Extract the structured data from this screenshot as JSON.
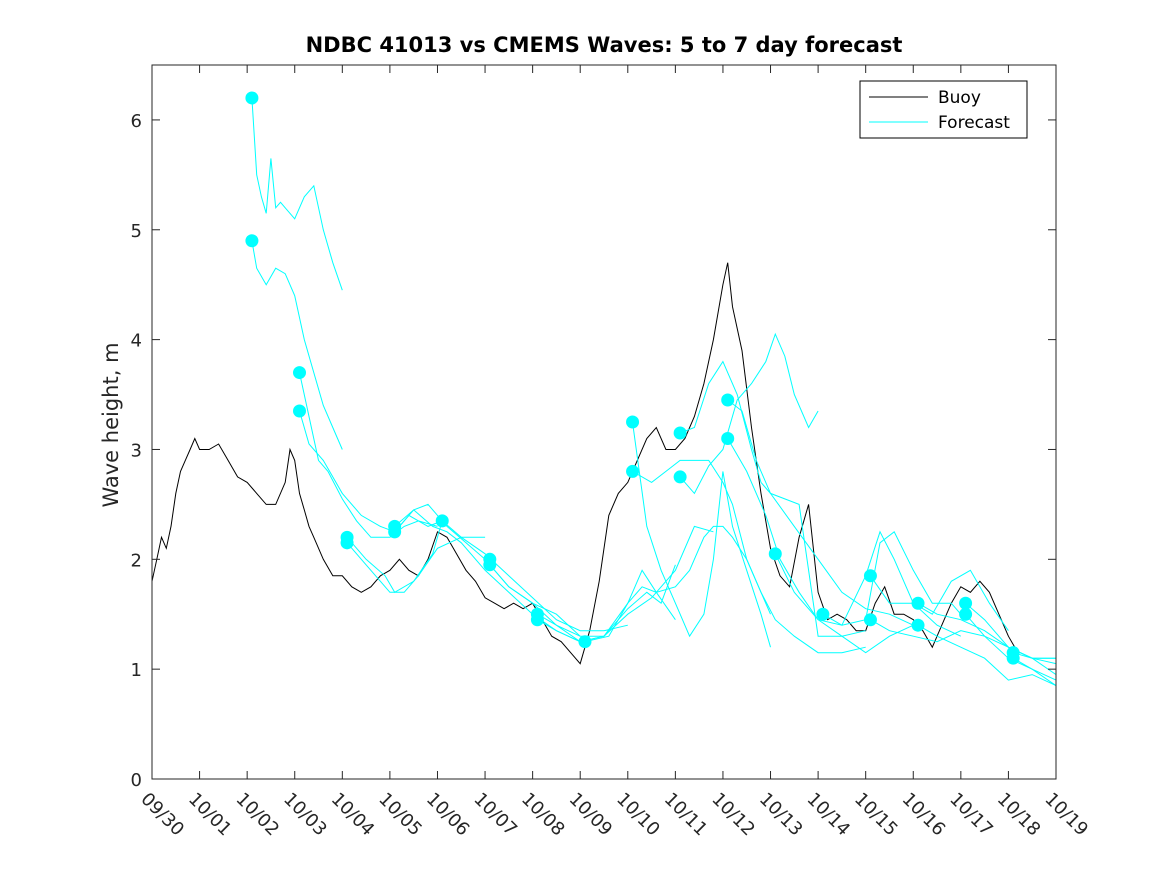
{
  "chart_data": {
    "type": "line",
    "title": "NDBC 41013 vs CMEMS Waves: 5 to 7 day forecast",
    "xlabel": "",
    "ylabel": "Wave height, m",
    "xlim": [
      0,
      19
    ],
    "ylim": [
      0,
      6.5
    ],
    "x_ticks": [
      0,
      1,
      2,
      3,
      4,
      5,
      6,
      7,
      8,
      9,
      10,
      11,
      12,
      13,
      14,
      15,
      16,
      17,
      18,
      19
    ],
    "x_tick_labels": [
      "09/30",
      "10/01",
      "10/02",
      "10/03",
      "10/04",
      "10/05",
      "10/06",
      "10/07",
      "10/08",
      "10/09",
      "10/10",
      "10/11",
      "10/12",
      "10/13",
      "10/14",
      "10/15",
      "10/16",
      "10/17",
      "10/18",
      "10/19"
    ],
    "y_ticks": [
      0,
      1,
      2,
      3,
      4,
      5,
      6
    ],
    "y_tick_labels": [
      "0",
      "1",
      "2",
      "3",
      "4",
      "5",
      "6"
    ],
    "legend": {
      "position": "top-right",
      "entries": [
        {
          "label": "Buoy",
          "color": "#000000"
        },
        {
          "label": "Forecast",
          "color": "#00FFFF"
        }
      ]
    },
    "buoy_color": "#000000",
    "forecast_color": "#00FFFF",
    "buoy": {
      "name": "Buoy",
      "x": [
        0,
        0.1,
        0.2,
        0.3,
        0.4,
        0.5,
        0.6,
        0.7,
        0.8,
        0.9,
        1.0,
        1.2,
        1.4,
        1.6,
        1.8,
        2.0,
        2.2,
        2.4,
        2.6,
        2.8,
        2.9,
        3.0,
        3.1,
        3.2,
        3.3,
        3.4,
        3.6,
        3.8,
        4.0,
        4.2,
        4.4,
        4.6,
        4.8,
        5.0,
        5.2,
        5.4,
        5.6,
        5.8,
        6.0,
        6.2,
        6.4,
        6.6,
        6.8,
        7.0,
        7.2,
        7.4,
        7.6,
        7.8,
        8.0,
        8.2,
        8.4,
        8.6,
        8.8,
        9.0,
        9.2,
        9.4,
        9.6,
        9.8,
        10.0,
        10.2,
        10.4,
        10.6,
        10.8,
        11.0,
        11.2,
        11.4,
        11.6,
        11.8,
        12.0,
        12.1,
        12.2,
        12.4,
        12.6,
        12.8,
        13.0,
        13.2,
        13.4,
        13.6,
        13.8,
        14.0,
        14.2,
        14.4,
        14.6,
        14.8,
        15.0,
        15.2,
        15.4,
        15.6,
        15.8,
        16.0,
        16.2,
        16.4,
        16.6,
        16.8,
        17.0,
        17.2,
        17.4,
        17.6,
        17.8,
        18.0,
        18.2
      ],
      "values": [
        1.8,
        2.0,
        2.2,
        2.1,
        2.3,
        2.6,
        2.8,
        2.9,
        3.0,
        3.1,
        3.0,
        3.0,
        3.05,
        2.9,
        2.75,
        2.7,
        2.6,
        2.5,
        2.5,
        2.7,
        3.0,
        2.9,
        2.6,
        2.45,
        2.3,
        2.2,
        2.0,
        1.85,
        1.85,
        1.75,
        1.7,
        1.75,
        1.85,
        1.9,
        2.0,
        1.9,
        1.85,
        2.0,
        2.25,
        2.2,
        2.05,
        1.9,
        1.8,
        1.65,
        1.6,
        1.55,
        1.6,
        1.55,
        1.6,
        1.45,
        1.3,
        1.25,
        1.15,
        1.05,
        1.35,
        1.8,
        2.4,
        2.6,
        2.7,
        2.9,
        3.1,
        3.2,
        3.0,
        3.0,
        3.1,
        3.3,
        3.6,
        4.0,
        4.5,
        4.7,
        4.3,
        3.9,
        3.2,
        2.6,
        2.1,
        1.85,
        1.75,
        2.2,
        2.5,
        1.7,
        1.45,
        1.5,
        1.45,
        1.35,
        1.35,
        1.6,
        1.75,
        1.5,
        1.5,
        1.45,
        1.35,
        1.2,
        1.4,
        1.6,
        1.75,
        1.7,
        1.8,
        1.7,
        1.5,
        1.3,
        1.15
      ]
    },
    "series": [
      {
        "name": "Forecast",
        "x": [
          2.1,
          2.2,
          2.3,
          2.4,
          2.5,
          2.6,
          2.7,
          2.8,
          3.0,
          3.2,
          3.4,
          3.6,
          3.8,
          4.0
        ],
        "values": [
          6.2,
          5.5,
          5.3,
          5.15,
          5.65,
          5.2,
          5.25,
          5.2,
          5.1,
          5.3,
          5.4,
          5.0,
          4.7,
          4.45
        ]
      },
      {
        "name": "Forecast",
        "x": [
          2.1,
          2.2,
          2.4,
          2.6,
          2.8,
          3.0,
          3.2,
          3.4,
          3.6,
          3.8,
          4.0
        ],
        "values": [
          4.9,
          4.65,
          4.5,
          4.65,
          4.6,
          4.4,
          4.0,
          3.7,
          3.4,
          3.2,
          3.0
        ]
      },
      {
        "name": "Forecast",
        "x": [
          3.1,
          3.3,
          3.5,
          3.7,
          4.0,
          4.3,
          4.6,
          5.0,
          5.3,
          5.6,
          6.0
        ],
        "values": [
          3.7,
          3.3,
          2.9,
          2.8,
          2.55,
          2.35,
          2.2,
          2.2,
          2.3,
          2.35,
          2.3
        ]
      },
      {
        "name": "Forecast",
        "x": [
          3.1,
          3.3,
          3.6,
          4.0,
          4.4,
          4.8,
          5.1,
          5.4,
          5.8,
          6.1
        ],
        "values": [
          3.35,
          3.05,
          2.9,
          2.6,
          2.4,
          2.3,
          2.25,
          2.4,
          2.3,
          2.35
        ]
      },
      {
        "name": "Forecast",
        "x": [
          4.1,
          4.4,
          4.8,
          5.0,
          5.3,
          5.6,
          6.0,
          6.5,
          7.0
        ],
        "values": [
          2.15,
          2.0,
          1.8,
          1.7,
          1.7,
          1.85,
          2.1,
          2.2,
          2.2
        ]
      },
      {
        "name": "Forecast",
        "x": [
          4.1,
          4.5,
          4.9,
          5.1,
          5.5,
          5.9,
          6.1
        ],
        "values": [
          2.2,
          2.0,
          1.85,
          1.7,
          1.8,
          2.05,
          2.35
        ]
      },
      {
        "name": "Forecast",
        "x": [
          5.1,
          5.5,
          5.9,
          6.2,
          6.5,
          7.0,
          7.5,
          8.0,
          8.5,
          9.0
        ],
        "values": [
          2.3,
          2.45,
          2.3,
          2.25,
          2.15,
          1.9,
          1.7,
          1.5,
          1.35,
          1.25
        ]
      },
      {
        "name": "Forecast",
        "x": [
          5.1,
          5.5,
          5.8,
          6.2,
          6.6,
          7.0,
          7.5,
          8.0,
          8.5,
          9.0
        ],
        "values": [
          2.25,
          2.45,
          2.5,
          2.3,
          2.15,
          2.0,
          1.75,
          1.6,
          1.5,
          1.3
        ]
      },
      {
        "name": "Forecast",
        "x": [
          6.1,
          6.5,
          7.0,
          7.5,
          8.0,
          8.5,
          9.0,
          9.5,
          10.0
        ],
        "values": [
          2.35,
          2.2,
          2.05,
          1.85,
          1.65,
          1.45,
          1.35,
          1.35,
          1.4
        ]
      },
      {
        "name": "Forecast",
        "x": [
          7.1,
          7.5,
          8.0,
          8.5,
          9.0,
          9.5,
          10.0,
          10.3,
          10.6,
          11.0
        ],
        "values": [
          1.95,
          1.75,
          1.6,
          1.4,
          1.3,
          1.3,
          1.6,
          1.9,
          1.7,
          1.45
        ]
      },
      {
        "name": "Forecast",
        "x": [
          8.1,
          8.5,
          9.0,
          9.5,
          10.0,
          10.4,
          10.7,
          11.0
        ],
        "values": [
          1.45,
          1.35,
          1.25,
          1.3,
          1.55,
          1.7,
          1.6,
          1.95
        ]
      },
      {
        "name": "Forecast",
        "x": [
          8.1,
          8.5,
          9.0,
          9.5,
          10.0,
          10.5,
          11.0,
          11.4,
          11.8
        ],
        "values": [
          1.5,
          1.4,
          1.25,
          1.3,
          1.5,
          1.65,
          1.9,
          2.3,
          2.25
        ]
      },
      {
        "name": "Forecast",
        "x": [
          9.1,
          9.6,
          10.0,
          10.3,
          10.6,
          11.0,
          11.3,
          11.6,
          11.8,
          12.0,
          12.2,
          12.5,
          12.8,
          13.0
        ],
        "values": [
          1.25,
          1.3,
          1.6,
          1.75,
          1.7,
          1.75,
          1.9,
          2.2,
          2.3,
          2.3,
          2.2,
          2.0,
          1.7,
          1.5
        ]
      },
      {
        "name": "Forecast",
        "x": [
          10.1,
          10.4,
          10.7,
          11.0,
          11.3,
          11.6,
          11.8,
          12.0,
          12.2,
          12.5,
          12.8,
          13.0
        ],
        "values": [
          3.25,
          2.3,
          1.9,
          1.6,
          1.3,
          1.5,
          2.0,
          2.8,
          2.3,
          1.9,
          1.5,
          1.2
        ]
      },
      {
        "name": "Forecast",
        "x": [
          10.1,
          10.5,
          10.8,
          11.1,
          11.4,
          11.7,
          12.0,
          12.2,
          12.5,
          12.8,
          13.1,
          13.5,
          14.0,
          14.5,
          15.0
        ],
        "values": [
          2.8,
          2.7,
          2.8,
          2.9,
          2.9,
          2.9,
          2.7,
          2.5,
          2.0,
          1.7,
          1.45,
          1.3,
          1.15,
          1.15,
          1.2
        ]
      },
      {
        "name": "Forecast",
        "x": [
          11.1,
          11.4,
          11.7,
          12.0,
          12.3,
          12.6,
          12.8,
          13.0,
          13.3,
          13.6,
          14.0,
          14.5,
          15.0
        ],
        "values": [
          3.15,
          3.2,
          3.6,
          3.8,
          3.5,
          3.0,
          2.7,
          2.6,
          2.55,
          2.5,
          1.3,
          1.3,
          1.35
        ]
      },
      {
        "name": "Forecast",
        "x": [
          11.1,
          11.4,
          11.7,
          12.0,
          12.3,
          12.6,
          12.9,
          13.1,
          13.3,
          13.5,
          13.8,
          14.0
        ],
        "values": [
          2.75,
          2.6,
          2.85,
          3.0,
          3.45,
          3.6,
          3.8,
          4.05,
          3.85,
          3.5,
          3.2,
          3.35
        ]
      },
      {
        "name": "Forecast",
        "x": [
          12.1,
          12.4,
          12.7,
          13.0,
          13.5,
          14.0,
          14.5,
          15.0,
          15.5,
          16.0
        ],
        "values": [
          3.45,
          3.35,
          2.9,
          2.6,
          2.3,
          2.0,
          1.7,
          1.55,
          1.5,
          1.4
        ]
      },
      {
        "name": "Forecast",
        "x": [
          12.1,
          12.5,
          12.9,
          13.2,
          13.6,
          14.0,
          14.5,
          15.0,
          15.5,
          16.0
        ],
        "values": [
          3.1,
          2.8,
          2.4,
          2.0,
          1.7,
          1.45,
          1.3,
          1.15,
          1.3,
          1.4
        ]
      },
      {
        "name": "Forecast",
        "x": [
          13.1,
          13.5,
          14.0,
          14.5,
          15.0,
          15.3,
          15.6,
          16.0,
          16.5,
          17.0
        ],
        "values": [
          2.05,
          1.7,
          1.45,
          1.4,
          1.85,
          2.25,
          2.0,
          1.6,
          1.4,
          1.3
        ]
      },
      {
        "name": "Forecast",
        "x": [
          14.1,
          14.5,
          15.0,
          15.3,
          15.6,
          16.0,
          16.4,
          16.8,
          17.0
        ],
        "values": [
          1.5,
          1.4,
          1.45,
          2.15,
          2.25,
          1.9,
          1.6,
          1.6,
          1.5
        ]
      },
      {
        "name": "Forecast",
        "x": [
          15.1,
          15.5,
          16.0,
          16.4,
          16.8,
          17.2,
          17.6,
          18.0
        ],
        "values": [
          1.85,
          1.6,
          1.6,
          1.5,
          1.8,
          1.9,
          1.6,
          1.35
        ]
      },
      {
        "name": "Forecast",
        "x": [
          15.1,
          15.5,
          16.0,
          16.5,
          17.0,
          17.5,
          18.0,
          18.5,
          19.0
        ],
        "values": [
          1.45,
          1.35,
          1.3,
          1.25,
          1.35,
          1.3,
          1.2,
          1.1,
          1.05
        ]
      },
      {
        "name": "Forecast",
        "x": [
          16.1,
          16.5,
          17.0,
          17.5,
          18.0,
          18.5,
          19.0
        ],
        "values": [
          1.6,
          1.5,
          1.45,
          1.35,
          1.2,
          1.1,
          0.95
        ]
      },
      {
        "name": "Forecast",
        "x": [
          16.1,
          16.5,
          17.0,
          17.5,
          18.0,
          18.5,
          19.0
        ],
        "values": [
          1.4,
          1.3,
          1.2,
          1.1,
          0.9,
          0.95,
          0.85
        ]
      },
      {
        "name": "Forecast",
        "x": [
          17.1,
          17.5,
          18.0,
          18.5,
          19.0
        ],
        "values": [
          1.6,
          1.45,
          1.2,
          1.1,
          1.1
        ]
      },
      {
        "name": "Forecast",
        "x": [
          17.1,
          17.5,
          18.0,
          18.5,
          19.0
        ],
        "values": [
          1.5,
          1.3,
          1.1,
          1.0,
          0.9
        ]
      },
      {
        "name": "Forecast",
        "x": [
          18.1,
          18.5,
          19.0
        ],
        "values": [
          1.15,
          1.1,
          1.1
        ]
      },
      {
        "name": "Forecast",
        "x": [
          18.1,
          18.5,
          19.0
        ],
        "values": [
          1.1,
          1.0,
          0.85
        ]
      }
    ],
    "markers": {
      "x": [
        2.1,
        2.1,
        3.1,
        3.1,
        4.1,
        4.1,
        5.1,
        5.1,
        6.1,
        7.1,
        7.1,
        8.1,
        8.1,
        9.1,
        10.1,
        10.1,
        11.1,
        11.1,
        12.1,
        12.1,
        13.1,
        14.1,
        15.1,
        15.1,
        16.1,
        16.1,
        17.1,
        17.1,
        18.1,
        18.1
      ],
      "values": [
        6.2,
        4.9,
        3.7,
        3.35,
        2.2,
        2.15,
        2.3,
        2.25,
        2.35,
        2.0,
        1.95,
        1.5,
        1.45,
        1.25,
        3.25,
        2.8,
        3.15,
        2.75,
        3.45,
        3.1,
        2.05,
        1.5,
        1.85,
        1.45,
        1.6,
        1.4,
        1.6,
        1.5,
        1.15,
        1.1
      ]
    }
  }
}
